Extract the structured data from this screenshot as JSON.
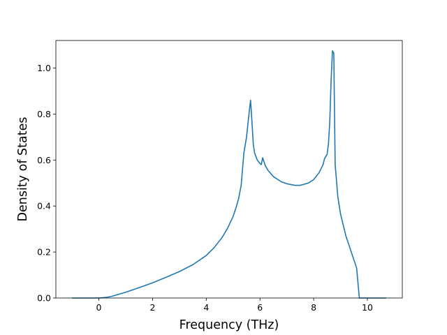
{
  "chart_data": {
    "type": "line",
    "title": "",
    "xlabel": "Frequency (THz)",
    "ylabel": "Density of States",
    "xlim": [
      -1.6,
      11.3
    ],
    "ylim": [
      0.0,
      1.12
    ],
    "xticks": [
      0,
      2,
      4,
      6,
      8,
      10
    ],
    "yticks": [
      0.0,
      0.2,
      0.4,
      0.6,
      0.8,
      1.0
    ],
    "xtick_labels": [
      "0",
      "2",
      "4",
      "6",
      "8",
      "10"
    ],
    "ytick_labels": [
      "0.0",
      "0.2",
      "0.4",
      "0.6",
      "0.8",
      "1.0"
    ],
    "grid": false,
    "legend": "none",
    "series": [
      {
        "color": "#1f77b4",
        "x": [
          -1.0,
          0.0,
          0.3,
          0.5,
          1.0,
          1.5,
          2.0,
          2.5,
          3.0,
          3.5,
          4.0,
          4.3,
          4.6,
          4.8,
          5.0,
          5.1,
          5.2,
          5.25,
          5.3,
          5.4,
          5.5,
          5.6,
          5.65,
          5.7,
          5.75,
          5.8,
          5.9,
          6.0,
          6.05,
          6.1,
          6.2,
          6.3,
          6.5,
          6.8,
          7.0,
          7.3,
          7.5,
          7.8,
          8.0,
          8.2,
          8.35,
          8.4,
          8.5,
          8.55,
          8.6,
          8.65,
          8.7,
          8.75,
          8.77,
          8.8,
          8.9,
          9.0,
          9.2,
          9.4,
          9.6,
          9.7,
          10.0,
          10.7
        ],
        "y": [
          0.0,
          0.0,
          0.003,
          0.008,
          0.025,
          0.045,
          0.066,
          0.09,
          0.115,
          0.145,
          0.185,
          0.22,
          0.265,
          0.305,
          0.355,
          0.39,
          0.43,
          0.46,
          0.49,
          0.63,
          0.7,
          0.81,
          0.86,
          0.77,
          0.67,
          0.63,
          0.6,
          0.585,
          0.58,
          0.61,
          0.575,
          0.555,
          0.528,
          0.505,
          0.497,
          0.49,
          0.49,
          0.5,
          0.515,
          0.545,
          0.58,
          0.605,
          0.625,
          0.67,
          0.77,
          0.95,
          1.075,
          1.065,
          0.86,
          0.58,
          0.44,
          0.365,
          0.27,
          0.2,
          0.13,
          0.0,
          0.0,
          0.0
        ]
      }
    ]
  }
}
